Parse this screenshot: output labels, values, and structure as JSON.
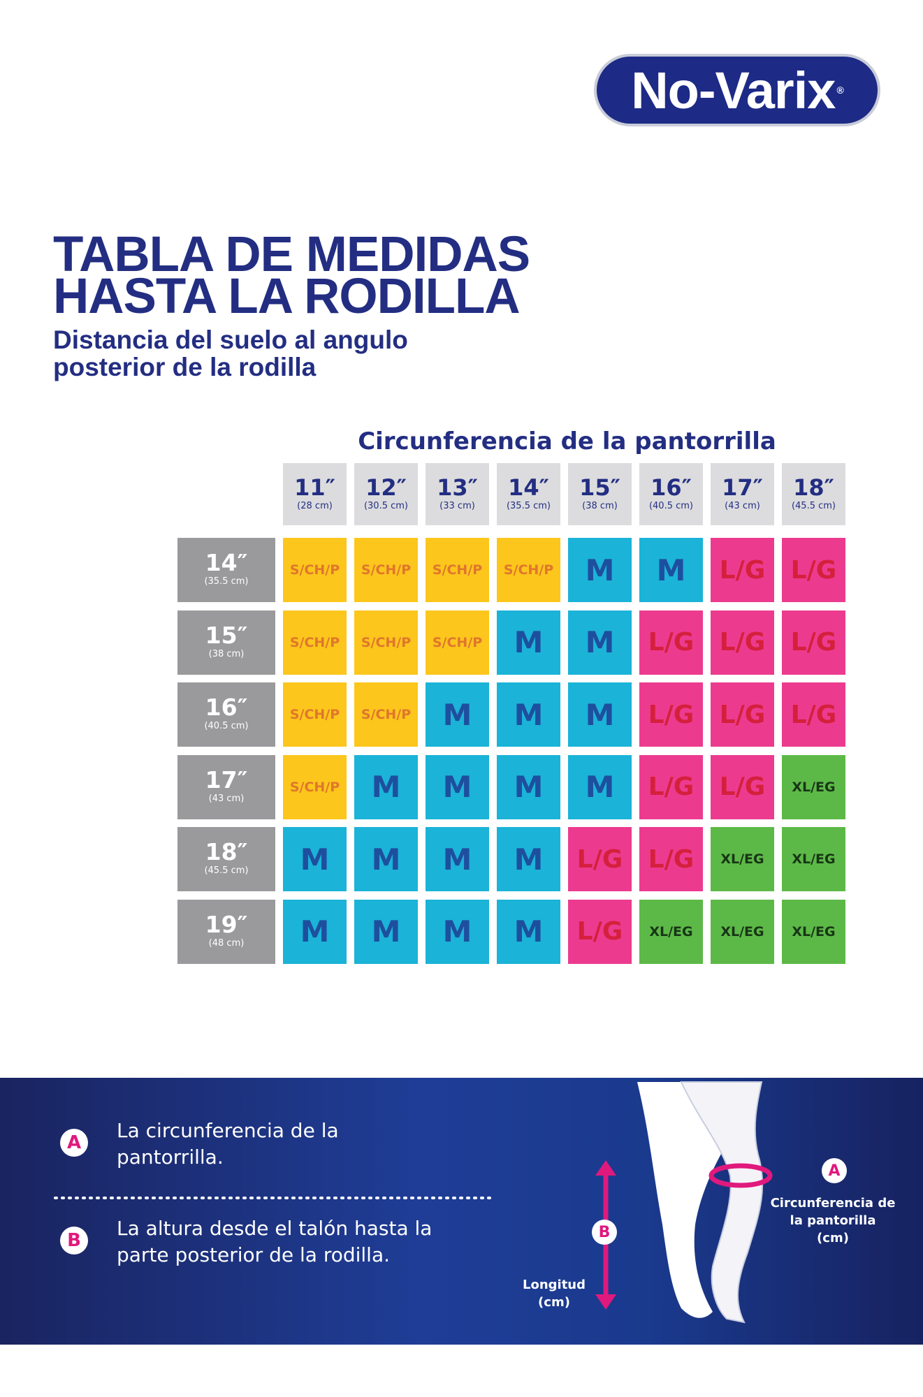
{
  "logo": {
    "text": "No-Varix",
    "mark": "®"
  },
  "title": [
    "TABLA DE MEDIDAS",
    "HASTA LA RODILLA"
  ],
  "subtitle": [
    "Distancia del suelo al  angulo",
    "posterior de la rodilla"
  ],
  "table": {
    "column_title": "Circunferencia de la pantorrilla",
    "columns": [
      {
        "inch": "11″",
        "cm": "(28 cm)"
      },
      {
        "inch": "12″",
        "cm": "(30.5 cm)"
      },
      {
        "inch": "13″",
        "cm": "(33 cm)"
      },
      {
        "inch": "14″",
        "cm": "(35.5 cm)"
      },
      {
        "inch": "15″",
        "cm": "(38 cm)"
      },
      {
        "inch": "16″",
        "cm": "(40.5 cm)"
      },
      {
        "inch": "17″",
        "cm": "(43 cm)"
      },
      {
        "inch": "18″",
        "cm": "(45.5 cm)"
      }
    ],
    "rows": [
      {
        "inch": "14″",
        "cm": "(35.5 cm)",
        "cells": [
          "S/CH/P",
          "S/CH/P",
          "S/CH/P",
          "S/CH/P",
          "M",
          "M",
          "L/G",
          "L/G"
        ]
      },
      {
        "inch": "15″",
        "cm": "(38 cm)",
        "cells": [
          "S/CH/P",
          "S/CH/P",
          "S/CH/P",
          "M",
          "M",
          "L/G",
          "L/G",
          "L/G"
        ]
      },
      {
        "inch": "16″",
        "cm": "(40.5 cm)",
        "cells": [
          "S/CH/P",
          "S/CH/P",
          "M",
          "M",
          "M",
          "L/G",
          "L/G",
          "L/G"
        ]
      },
      {
        "inch": "17″",
        "cm": "(43 cm)",
        "cells": [
          "S/CH/P",
          "M",
          "M",
          "M",
          "M",
          "L/G",
          "L/G",
          "XL/EG"
        ]
      },
      {
        "inch": "18″",
        "cm": "(45.5 cm)",
        "cells": [
          "M",
          "M",
          "M",
          "M",
          "L/G",
          "L/G",
          "XL/EG",
          "XL/EG"
        ]
      },
      {
        "inch": "19″",
        "cm": "(48 cm)",
        "cells": [
          "M",
          "M",
          "M",
          "M",
          "L/G",
          "XL/EG",
          "XL/EG",
          "XL/EG"
        ]
      }
    ],
    "cell_colors": {
      "S/CH/P": {
        "bg": "#fcc61c",
        "fg": "#e0762c"
      },
      "M": {
        "bg": "#1bb3d8",
        "fg": "#1e4f9e"
      },
      "L/G": {
        "bg": "#ec3b8f",
        "fg": "#d4203c"
      },
      "XL/EG": {
        "bg": "#5db947",
        "fg": "#173516"
      }
    }
  },
  "legend": [
    {
      "marker": "A",
      "text": [
        "La circunferencia de la",
        "pantorrilla."
      ]
    },
    {
      "marker": "B",
      "text": [
        "La altura desde el talón hasta la",
        "parte posterior de la rodilla."
      ]
    }
  ],
  "diagram": {
    "a_marker": "A",
    "a_label": [
      "Circunferencia de",
      "la pantorilla",
      "(cm)"
    ],
    "b_marker": "B",
    "b_label": [
      "Longitud",
      "(cm)"
    ]
  }
}
